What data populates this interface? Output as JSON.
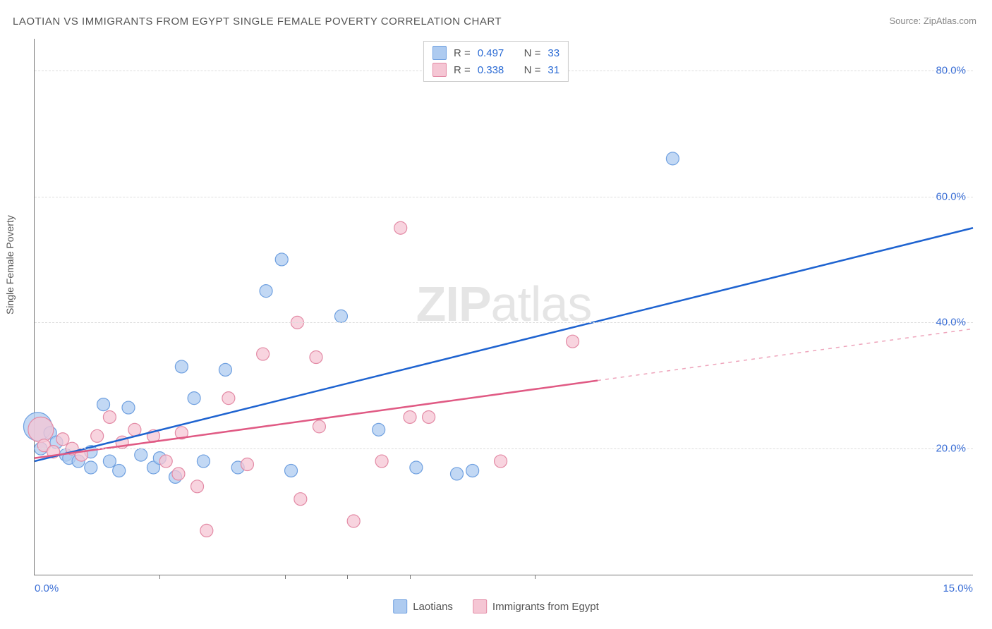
{
  "title": "LAOTIAN VS IMMIGRANTS FROM EGYPT SINGLE FEMALE POVERTY CORRELATION CHART",
  "source_prefix": "Source: ",
  "source_name": "ZipAtlas.com",
  "ylabel": "Single Female Poverty",
  "watermark_bold": "ZIP",
  "watermark_rest": "atlas",
  "chart": {
    "type": "scatter-with-trend",
    "xlim": [
      0.0,
      15.0
    ],
    "ylim": [
      0.0,
      85.0
    ],
    "x_tick_positions": [
      0.0,
      2.0,
      4.0,
      5.0,
      6.0,
      8.0,
      15.0
    ],
    "x_tick_labels": {
      "0.0": "0.0%",
      "15.0": "15.0%"
    },
    "y_ticks": [
      20.0,
      40.0,
      60.0,
      80.0
    ],
    "y_tick_labels": [
      "20.0%",
      "40.0%",
      "60.0%",
      "80.0%"
    ],
    "grid_color": "#dddddd",
    "axis_color": "#777777",
    "tick_label_color": "#3b6fd6",
    "background_color": "#ffffff",
    "marker_radius": 9,
    "marker_stroke_width": 1.2,
    "trend_line_width": 2.5,
    "series": [
      {
        "name": "Laotians",
        "fill": "#aecbf0",
        "stroke": "#6fa0e0",
        "line_color": "#1e63d0",
        "r_value": "0.497",
        "n_value": "33",
        "trend": {
          "x1": 0.0,
          "y1": 18.0,
          "x2": 15.0,
          "y2": 55.0,
          "solid_until_x": 15.0
        },
        "points": [
          {
            "x": 0.05,
            "y": 23.5,
            "r": 20
          },
          {
            "x": 0.1,
            "y": 20.0
          },
          {
            "x": 0.25,
            "y": 22.5
          },
          {
            "x": 0.35,
            "y": 21.0
          },
          {
            "x": 0.5,
            "y": 19.0
          },
          {
            "x": 0.55,
            "y": 18.5
          },
          {
            "x": 0.7,
            "y": 18.0
          },
          {
            "x": 0.9,
            "y": 19.5
          },
          {
            "x": 0.9,
            "y": 17.0
          },
          {
            "x": 1.1,
            "y": 27.0
          },
          {
            "x": 1.2,
            "y": 18.0
          },
          {
            "x": 1.35,
            "y": 16.5
          },
          {
            "x": 1.5,
            "y": 26.5
          },
          {
            "x": 1.7,
            "y": 19.0
          },
          {
            "x": 1.9,
            "y": 17.0
          },
          {
            "x": 2.0,
            "y": 18.5
          },
          {
            "x": 2.25,
            "y": 15.5
          },
          {
            "x": 2.35,
            "y": 33.0
          },
          {
            "x": 2.55,
            "y": 28.0
          },
          {
            "x": 2.7,
            "y": 18.0
          },
          {
            "x": 3.05,
            "y": 32.5
          },
          {
            "x": 3.25,
            "y": 17.0
          },
          {
            "x": 3.7,
            "y": 45.0
          },
          {
            "x": 3.95,
            "y": 50.0
          },
          {
            "x": 4.1,
            "y": 16.5
          },
          {
            "x": 4.9,
            "y": 41.0
          },
          {
            "x": 5.5,
            "y": 23.0
          },
          {
            "x": 6.1,
            "y": 17.0
          },
          {
            "x": 6.75,
            "y": 16.0
          },
          {
            "x": 7.0,
            "y": 16.5
          },
          {
            "x": 10.2,
            "y": 66.0
          }
        ]
      },
      {
        "name": "Immigrants from Egypt",
        "fill": "#f5c6d4",
        "stroke": "#e38aa5",
        "line_color": "#e05a84",
        "r_value": "0.338",
        "n_value": "31",
        "trend": {
          "x1": 0.0,
          "y1": 18.5,
          "x2": 15.0,
          "y2": 39.0,
          "solid_until_x": 9.0
        },
        "points": [
          {
            "x": 0.1,
            "y": 23.0,
            "r": 18
          },
          {
            "x": 0.15,
            "y": 20.5
          },
          {
            "x": 0.3,
            "y": 19.5
          },
          {
            "x": 0.45,
            "y": 21.5
          },
          {
            "x": 0.6,
            "y": 20.0
          },
          {
            "x": 0.75,
            "y": 19.0
          },
          {
            "x": 1.0,
            "y": 22.0
          },
          {
            "x": 1.2,
            "y": 25.0
          },
          {
            "x": 1.4,
            "y": 21.0
          },
          {
            "x": 1.6,
            "y": 23.0
          },
          {
            "x": 1.9,
            "y": 22.0
          },
          {
            "x": 2.1,
            "y": 18.0
          },
          {
            "x": 2.3,
            "y": 16.0
          },
          {
            "x": 2.35,
            "y": 22.5
          },
          {
            "x": 2.6,
            "y": 14.0
          },
          {
            "x": 2.75,
            "y": 7.0
          },
          {
            "x": 3.1,
            "y": 28.0
          },
          {
            "x": 3.4,
            "y": 17.5
          },
          {
            "x": 3.65,
            "y": 35.0
          },
          {
            "x": 4.2,
            "y": 40.0
          },
          {
            "x": 4.25,
            "y": 12.0
          },
          {
            "x": 4.5,
            "y": 34.5
          },
          {
            "x": 4.55,
            "y": 23.5
          },
          {
            "x": 5.1,
            "y": 8.5
          },
          {
            "x": 5.55,
            "y": 18.0
          },
          {
            "x": 5.85,
            "y": 55.0
          },
          {
            "x": 6.0,
            "y": 25.0
          },
          {
            "x": 6.3,
            "y": 25.0
          },
          {
            "x": 7.45,
            "y": 18.0
          },
          {
            "x": 8.6,
            "y": 37.0
          }
        ]
      }
    ]
  },
  "legend_top": {
    "r_label": "R =",
    "n_label": "N ="
  },
  "legend_bottom_labels": [
    "Laotians",
    "Immigrants from Egypt"
  ]
}
